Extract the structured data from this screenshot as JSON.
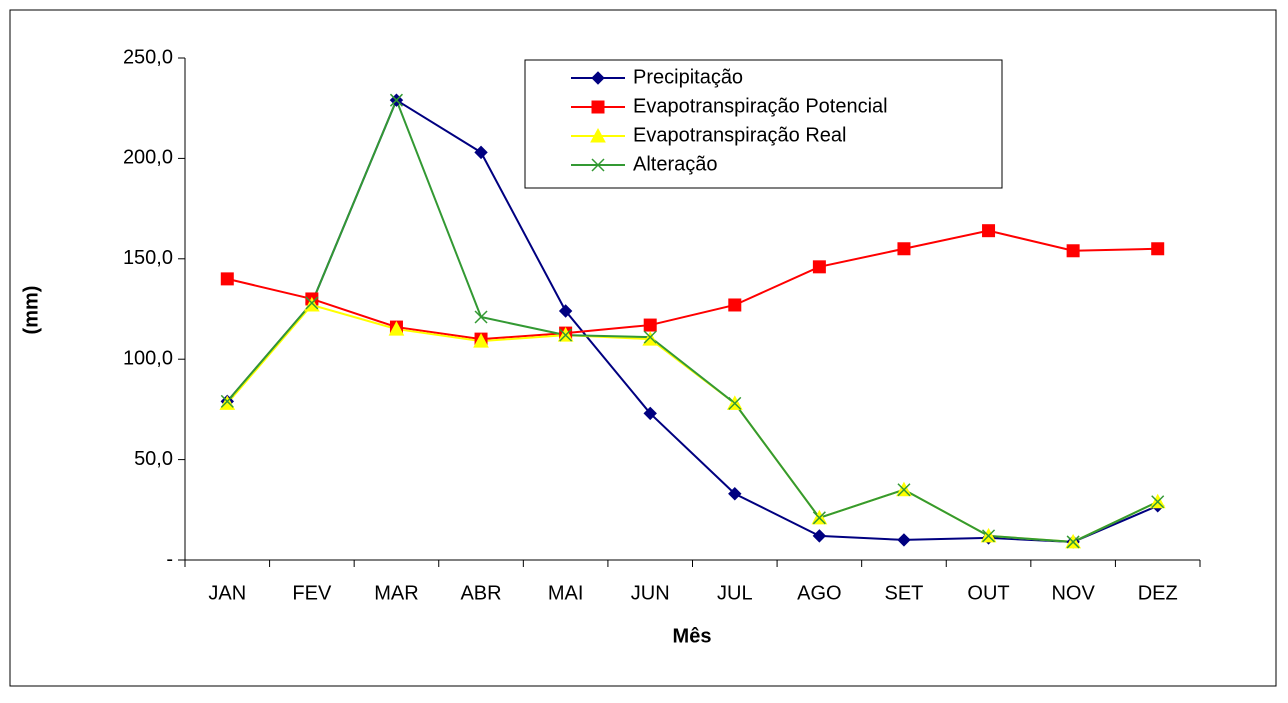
{
  "chart_data": {
    "type": "line",
    "x_label": "Mês",
    "y_label": "(mm)",
    "categories": [
      "JAN",
      "FEV",
      "MAR",
      "ABR",
      "MAI",
      "JUN",
      "JUL",
      "AGO",
      "SET",
      "OUT",
      "NOV",
      "DEZ"
    ],
    "series": [
      {
        "name": "Precipitação",
        "color": "#000080",
        "marker": "diamond",
        "values": [
          79,
          128,
          229,
          203,
          124,
          73,
          33,
          12,
          10,
          11,
          9,
          27
        ]
      },
      {
        "name": "Evapotranspiração Potencial",
        "color": "#ff0000",
        "marker": "square",
        "values": [
          140,
          130,
          116,
          110,
          113,
          117,
          127,
          146,
          155,
          164,
          154,
          155
        ]
      },
      {
        "name": "Evapotranspiração Real",
        "color": "#ffff00",
        "marker": "triangle",
        "values": [
          78,
          127,
          115,
          109,
          112,
          110,
          78,
          21,
          35,
          12,
          9,
          29
        ]
      },
      {
        "name": "Alteração",
        "color": "#339933",
        "marker": "x",
        "values": [
          79,
          128,
          229,
          121,
          112,
          111,
          78,
          21,
          35,
          12,
          9,
          29
        ]
      }
    ],
    "ylim": [
      0,
      250
    ],
    "yticks": [
      {
        "value": 0,
        "label": "-"
      },
      {
        "value": 50,
        "label": "50,0"
      },
      {
        "value": 100,
        "label": "100,0"
      },
      {
        "value": 150,
        "label": "150,0"
      },
      {
        "value": 200,
        "label": "200,0"
      },
      {
        "value": 250,
        "label": "250,0"
      }
    ],
    "legend": "top-right"
  }
}
